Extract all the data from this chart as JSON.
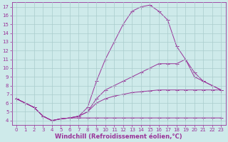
{
  "xlabel": "Windchill (Refroidissement éolien,°C)",
  "background_color": "#ceeaea",
  "grid_color": "#aacccc",
  "line_color": "#993399",
  "xlim": [
    -0.5,
    23.5
  ],
  "ylim": [
    3.5,
    17.5
  ],
  "xticks": [
    0,
    1,
    2,
    3,
    4,
    5,
    6,
    7,
    8,
    9,
    10,
    11,
    12,
    13,
    14,
    15,
    16,
    17,
    18,
    19,
    20,
    21,
    22,
    23
  ],
  "yticks": [
    4,
    5,
    6,
    7,
    8,
    9,
    10,
    11,
    12,
    13,
    14,
    15,
    16,
    17
  ],
  "line1_x": [
    0,
    1,
    2,
    3,
    4,
    5,
    6,
    7,
    8,
    9,
    10,
    11,
    12,
    13,
    14,
    15,
    16,
    17,
    18,
    19,
    20,
    21,
    22,
    23
  ],
  "line1_y": [
    6.5,
    6.0,
    5.5,
    4.5,
    4.0,
    4.2,
    4.3,
    4.3,
    4.3,
    4.3,
    4.3,
    4.3,
    4.3,
    4.3,
    4.3,
    4.3,
    4.3,
    4.3,
    4.3,
    4.3,
    4.3,
    4.3,
    4.3,
    4.3
  ],
  "line2_x": [
    0,
    1,
    2,
    3,
    4,
    5,
    6,
    7,
    8,
    9,
    10,
    11,
    12,
    13,
    14,
    15,
    16,
    17,
    18,
    19,
    20,
    21,
    22,
    23
  ],
  "line2_y": [
    6.5,
    6.0,
    5.5,
    4.5,
    4.0,
    4.2,
    4.3,
    4.5,
    5.5,
    8.5,
    11.0,
    13.0,
    15.0,
    16.5,
    17.0,
    17.2,
    16.5,
    15.5,
    12.5,
    11.0,
    9.0,
    8.5,
    8.0,
    7.5
  ],
  "line3_x": [
    0,
    1,
    2,
    3,
    4,
    5,
    6,
    7,
    8,
    9,
    10,
    11,
    12,
    13,
    14,
    15,
    16,
    17,
    18,
    19,
    20,
    21,
    22,
    23
  ],
  "line3_y": [
    6.5,
    6.0,
    5.5,
    4.5,
    4.0,
    4.2,
    4.3,
    4.5,
    5.0,
    6.5,
    7.5,
    8.0,
    8.5,
    9.0,
    9.5,
    10.0,
    10.5,
    10.5,
    10.5,
    11.0,
    9.5,
    8.5,
    8.0,
    7.5
  ],
  "line4_x": [
    0,
    1,
    2,
    3,
    4,
    5,
    6,
    7,
    8,
    9,
    10,
    11,
    12,
    13,
    14,
    15,
    16,
    17,
    18,
    19,
    20,
    21,
    22,
    23
  ],
  "line4_y": [
    6.5,
    6.0,
    5.5,
    4.5,
    4.0,
    4.2,
    4.3,
    4.5,
    5.0,
    6.0,
    6.5,
    6.8,
    7.0,
    7.2,
    7.3,
    7.4,
    7.5,
    7.5,
    7.5,
    7.5,
    7.5,
    7.5,
    7.5,
    7.5
  ],
  "tick_fontsize": 5.0,
  "xlabel_fontsize": 6.0,
  "marker_size": 1.8,
  "line_width": 0.7
}
